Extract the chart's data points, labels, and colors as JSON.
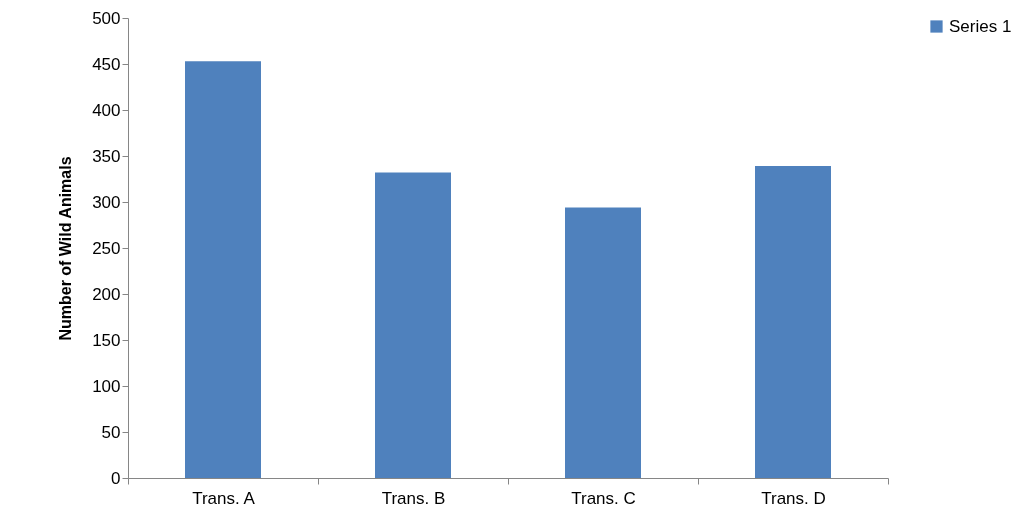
{
  "chart_data": {
    "type": "bar",
    "ylabel": "Number of Wild Animals",
    "categories": [
      "Trans. A",
      "Trans. B",
      "Trans. C",
      "Trans. D"
    ],
    "series": [
      {
        "name": "Series 1",
        "color": "#4f81bd",
        "values": [
          453,
          332,
          294,
          339
        ]
      }
    ],
    "ylim": [
      0,
      500
    ],
    "yticks": [
      0,
      50,
      100,
      150,
      200,
      250,
      300,
      350,
      400,
      450,
      500
    ],
    "grid": false,
    "legend": "right"
  }
}
